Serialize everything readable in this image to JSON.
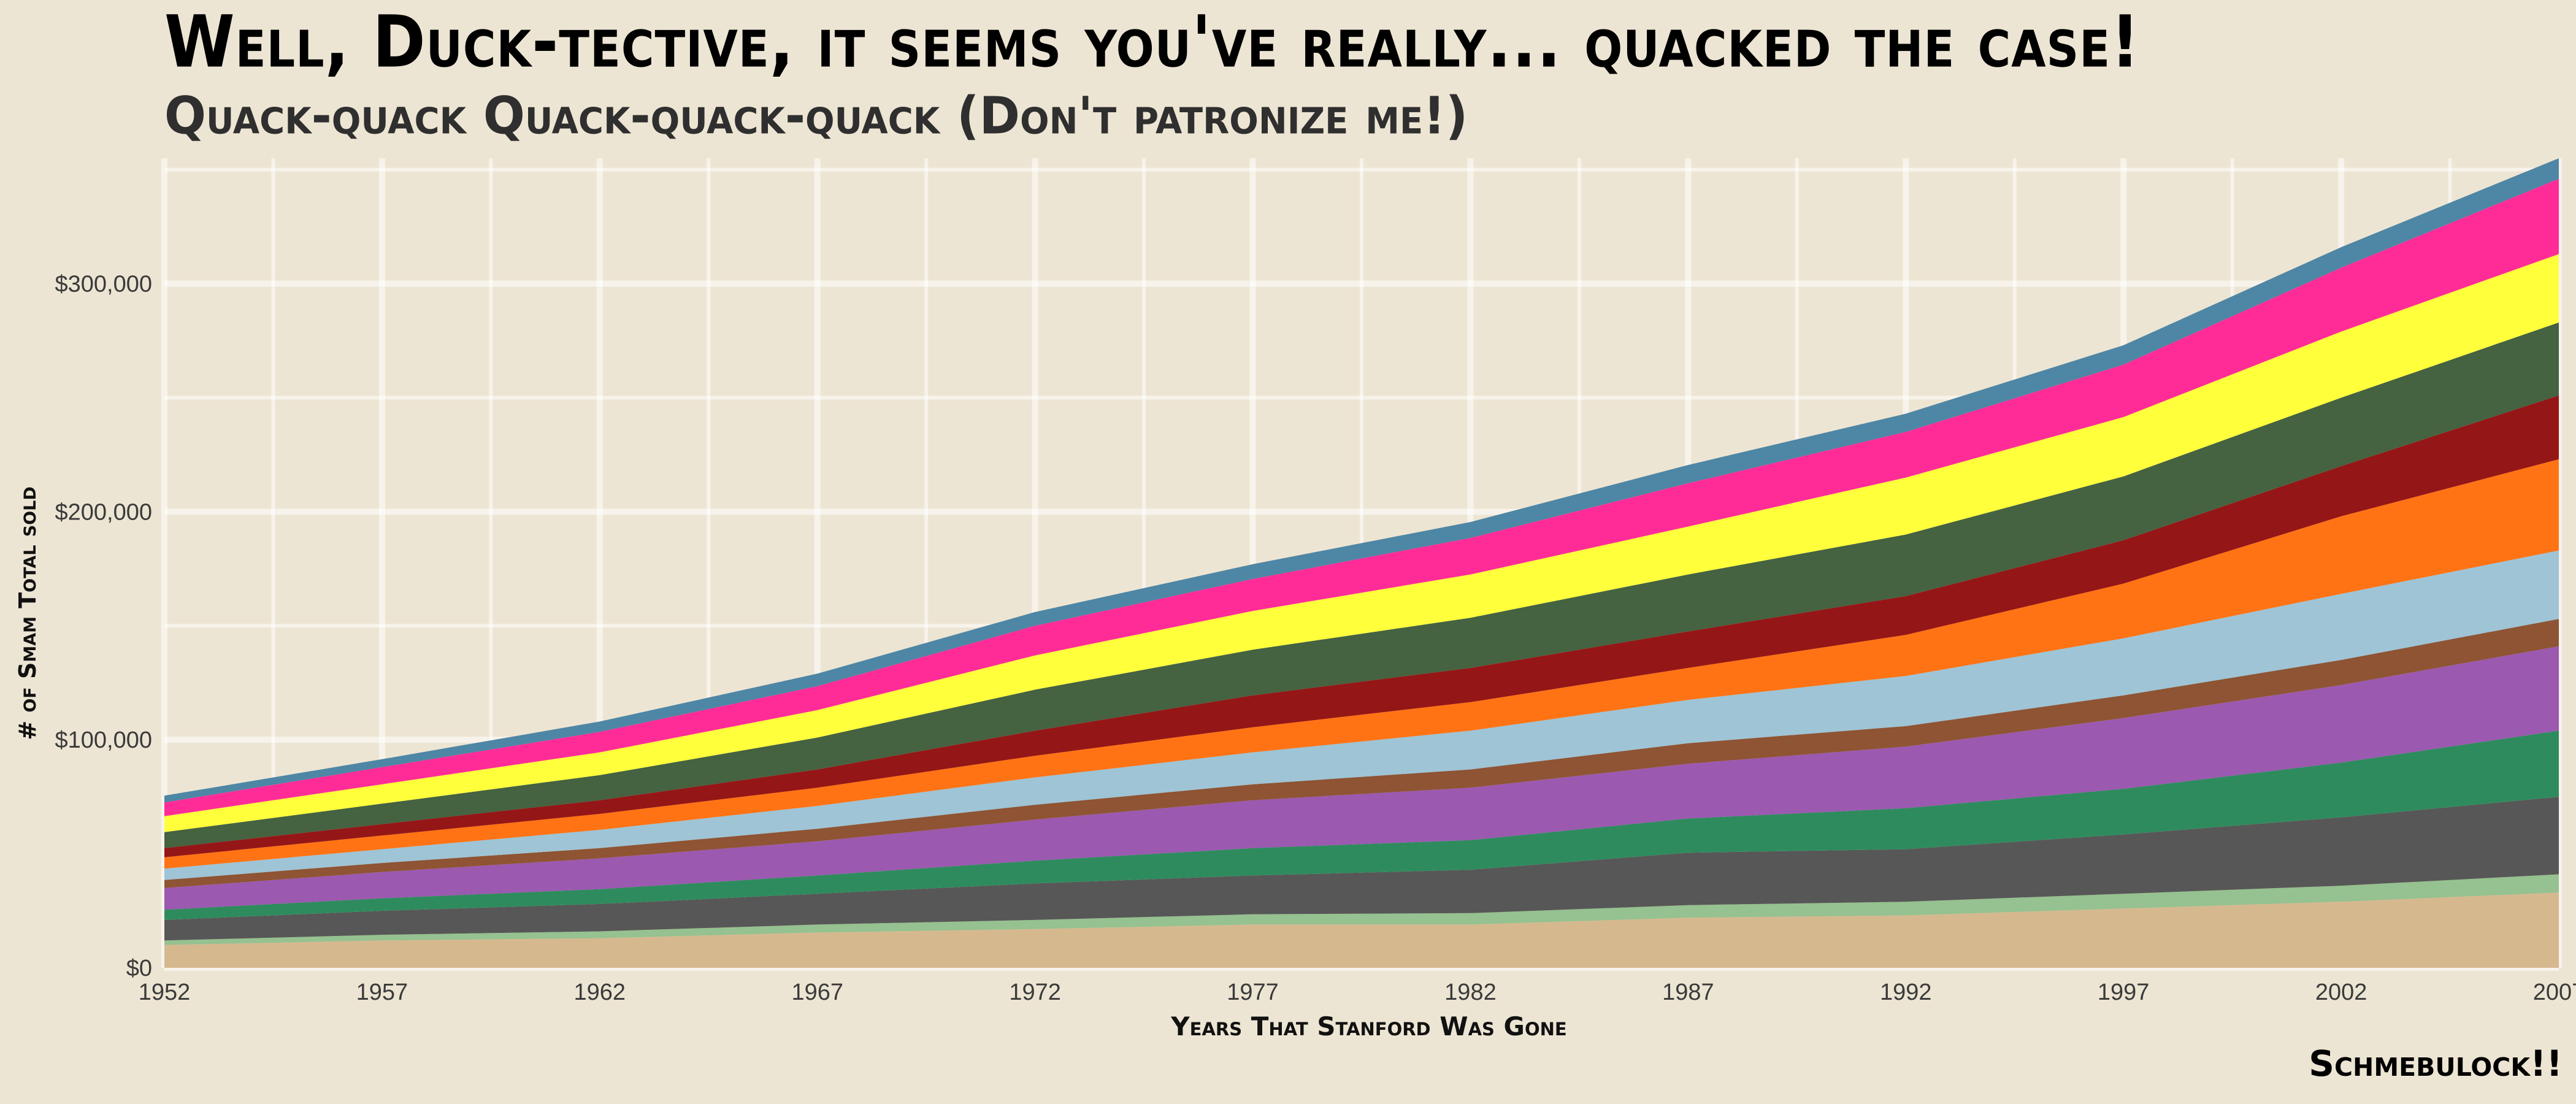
{
  "title": "Well, Duck-tective, it seems you've really... quacked the case!",
  "subtitle": "Quack-quack Quack-quack-quack (Don't patronize me!)",
  "caption": "Schmebulock!!",
  "chart_data": {
    "type": "area",
    "stacked": true,
    "title": "Well, Duck-tective, it seems you've really... quacked the case!",
    "subtitle": "Quack-quack Quack-quack-quack (Don't patronize me!)",
    "xlabel": "Years That Stanford Was Gone",
    "ylabel": "# of Smam Total sold",
    "x": [
      1952,
      1957,
      1962,
      1967,
      1972,
      1977,
      1982,
      1987,
      1992,
      1997,
      2002,
      2007
    ],
    "xticks": [
      1952,
      1957,
      1962,
      1967,
      1972,
      1977,
      1982,
      1987,
      1992,
      1997,
      2002,
      2007
    ],
    "xtick_labels": [
      "1952",
      "1957",
      "1962",
      "1967",
      "1972",
      "1977",
      "1982",
      "1987",
      "1992",
      "1997",
      "2002",
      "2007"
    ],
    "yticks": [
      0,
      100000,
      200000,
      300000
    ],
    "ytick_labels": [
      "$0",
      "$100,000",
      "$200,000",
      "$300,000"
    ],
    "ylim": [
      0,
      355000
    ],
    "grid": true,
    "legend": "none",
    "series": [
      {
        "color": "#d6b88f",
        "values": [
          10000,
          12000,
          13000,
          15500,
          17000,
          19000,
          19000,
          22000,
          23000,
          26000,
          29000,
          33000
        ]
      },
      {
        "color": "#96c190",
        "values": [
          2000,
          2500,
          3000,
          3500,
          4000,
          4500,
          5000,
          5500,
          6000,
          6500,
          7000,
          8000
        ]
      },
      {
        "color": "#575757",
        "values": [
          9000,
          10500,
          12000,
          13500,
          16000,
          17000,
          19000,
          23000,
          23000,
          26000,
          30000,
          34000
        ]
      },
      {
        "color": "#2e8b5e",
        "values": [
          4500,
          5500,
          6500,
          8000,
          10000,
          12000,
          13000,
          15000,
          18000,
          20000,
          24000,
          29000
        ]
      },
      {
        "color": "#9b59b0",
        "values": [
          9500,
          11500,
          13500,
          15000,
          18000,
          21000,
          23000,
          24000,
          27000,
          31000,
          34000,
          37000
        ]
      },
      {
        "color": "#8e5434",
        "values": [
          3500,
          4000,
          4500,
          5500,
          6500,
          7000,
          8000,
          9000,
          9000,
          10000,
          11000,
          12000
        ]
      },
      {
        "color": "#9ec4d6",
        "values": [
          5000,
          6000,
          8000,
          10000,
          12000,
          14000,
          17000,
          19000,
          22000,
          25000,
          29000,
          30000
        ]
      },
      {
        "color": "#ff7315",
        "values": [
          5000,
          6000,
          7000,
          8000,
          9500,
          11000,
          12500,
          14000,
          18000,
          24000,
          34000,
          40000
        ]
      },
      {
        "color": "#951616",
        "values": [
          4000,
          5000,
          6000,
          8000,
          11000,
          14000,
          15000,
          16000,
          17000,
          19000,
          22000,
          28000
        ]
      },
      {
        "color": "#456241",
        "values": [
          7000,
          9000,
          11000,
          14000,
          18000,
          20000,
          22000,
          25000,
          27000,
          28000,
          30000,
          32000
        ]
      },
      {
        "color": "#ffff3c",
        "values": [
          7000,
          8500,
          10000,
          12000,
          15000,
          17000,
          19000,
          21000,
          25000,
          26000,
          29000,
          30000
        ]
      },
      {
        "color": "#ff2c98",
        "values": [
          6000,
          7500,
          9000,
          10500,
          13000,
          14000,
          16000,
          19000,
          20000,
          23000,
          28000,
          33000
        ]
      },
      {
        "color": "#4e86a5",
        "values": [
          3000,
          3500,
          4500,
          5500,
          6000,
          6500,
          7000,
          8000,
          8000,
          8500,
          9000,
          9000
        ]
      }
    ]
  }
}
